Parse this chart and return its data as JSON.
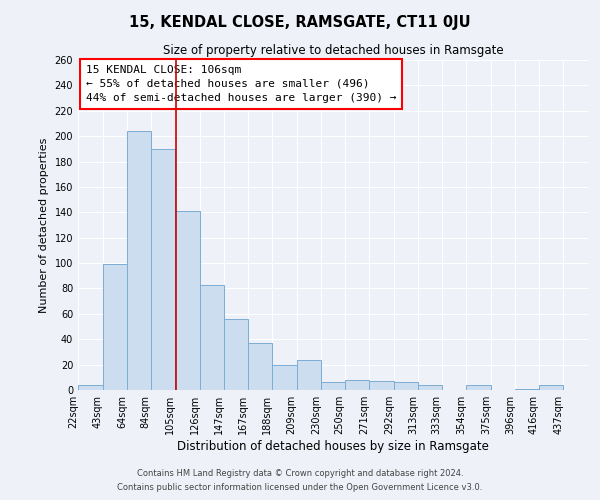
{
  "title": "15, KENDAL CLOSE, RAMSGATE, CT11 0JU",
  "subtitle": "Size of property relative to detached houses in Ramsgate",
  "xlabel": "Distribution of detached houses by size in Ramsgate",
  "ylabel": "Number of detached properties",
  "bar_labels": [
    "22sqm",
    "43sqm",
    "64sqm",
    "84sqm",
    "105sqm",
    "126sqm",
    "147sqm",
    "167sqm",
    "188sqm",
    "209sqm",
    "230sqm",
    "250sqm",
    "271sqm",
    "292sqm",
    "313sqm",
    "333sqm",
    "354sqm",
    "375sqm",
    "396sqm",
    "416sqm",
    "437sqm"
  ],
  "bar_values": [
    4,
    99,
    204,
    190,
    141,
    83,
    56,
    37,
    20,
    24,
    6,
    8,
    7,
    6,
    4,
    0,
    4,
    0,
    1,
    4
  ],
  "bar_edges": [
    22,
    43,
    64,
    84,
    105,
    126,
    147,
    167,
    188,
    209,
    230,
    250,
    271,
    292,
    313,
    333,
    354,
    375,
    396,
    416,
    437
  ],
  "property_size": 106,
  "pct_smaller": 55,
  "n_smaller": 496,
  "pct_larger_semi": 44,
  "n_larger_semi": 390,
  "bar_color": "#ccddf0",
  "bar_edge_color": "#7badd4",
  "marker_color": "#cc0000",
  "ylim": [
    0,
    260
  ],
  "yticks": [
    0,
    20,
    40,
    60,
    80,
    100,
    120,
    140,
    160,
    180,
    200,
    220,
    240,
    260
  ],
  "footer1": "Contains HM Land Registry data © Crown copyright and database right 2024.",
  "footer2": "Contains public sector information licensed under the Open Government Licence v3.0.",
  "background_color": "#eef2f8",
  "plot_bg_color": "#eef2f8",
  "grid_color": "#ffffff",
  "title_fontsize": 10.5,
  "subtitle_fontsize": 8.5,
  "ylabel_fontsize": 8,
  "xlabel_fontsize": 8.5,
  "tick_fontsize": 7,
  "annotation_fontsize": 8,
  "footer_fontsize": 6
}
